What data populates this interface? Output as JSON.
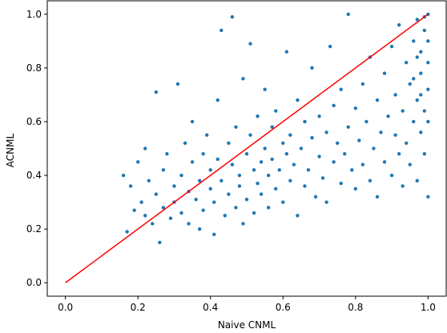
{
  "chart_data": {
    "type": "scatter",
    "xlabel": "Naive CNML",
    "ylabel": "ACNML",
    "xlim": [
      -0.05,
      1.05
    ],
    "ylim": [
      -0.05,
      1.05
    ],
    "xticks": [
      {
        "value": 0,
        "label": "0.0"
      },
      0.2,
      0.4,
      0.6,
      0.8,
      {
        "value": 1,
        "label": "1.0"
      }
    ],
    "yticks": [
      {
        "value": 0,
        "label": "0.0"
      },
      0.2,
      0.4,
      0.6,
      0.8,
      {
        "value": 1,
        "label": "1.0"
      }
    ],
    "grid": false,
    "color": "#1f77b4",
    "x": [
      0.16,
      0.17,
      0.18,
      0.19,
      0.2,
      0.21,
      0.22,
      0.22,
      0.23,
      0.24,
      0.25,
      0.25,
      0.26,
      0.27,
      0.27,
      0.28,
      0.29,
      0.3,
      0.3,
      0.31,
      0.32,
      0.32,
      0.33,
      0.34,
      0.34,
      0.35,
      0.35,
      0.36,
      0.37,
      0.37,
      0.38,
      0.38,
      0.39,
      0.4,
      0.4,
      0.41,
      0.41,
      0.42,
      0.42,
      0.43,
      0.43,
      0.44,
      0.45,
      0.45,
      0.46,
      0.46,
      0.47,
      0.47,
      0.48,
      0.48,
      0.49,
      0.49,
      0.5,
      0.5,
      0.51,
      0.51,
      0.52,
      0.52,
      0.53,
      0.53,
      0.54,
      0.54,
      0.55,
      0.55,
      0.56,
      0.56,
      0.57,
      0.57,
      0.58,
      0.58,
      0.59,
      0.6,
      0.6,
      0.61,
      0.61,
      0.62,
      0.62,
      0.63,
      0.64,
      0.64,
      0.65,
      0.66,
      0.66,
      0.67,
      0.68,
      0.68,
      0.69,
      0.7,
      0.7,
      0.71,
      0.72,
      0.72,
      0.73,
      0.74,
      0.74,
      0.75,
      0.76,
      0.76,
      0.77,
      0.78,
      0.78,
      0.79,
      0.8,
      0.8,
      0.81,
      0.82,
      0.82,
      0.83,
      0.84,
      0.84,
      0.85,
      0.86,
      0.86,
      0.87,
      0.88,
      0.88,
      0.89,
      0.9,
      0.9,
      0.91,
      0.91,
      0.92,
      0.92,
      0.93,
      0.93,
      0.94,
      0.94,
      0.95,
      0.95,
      0.96,
      0.96,
      0.97,
      0.97,
      0.97,
      0.98,
      0.98,
      0.98,
      0.99,
      0.99,
      0.99,
      1.0,
      1.0,
      1.0,
      1.0,
      1.0,
      1.0,
      0.99,
      0.98,
      0.97,
      0.96
    ],
    "y": [
      0.4,
      0.19,
      0.36,
      0.27,
      0.45,
      0.3,
      0.5,
      0.25,
      0.38,
      0.22,
      0.71,
      0.33,
      0.15,
      0.28,
      0.42,
      0.48,
      0.24,
      0.36,
      0.3,
      0.74,
      0.4,
      0.26,
      0.52,
      0.34,
      0.22,
      0.6,
      0.45,
      0.31,
      0.38,
      0.2,
      0.48,
      0.27,
      0.55,
      0.35,
      0.42,
      0.3,
      0.18,
      0.68,
      0.46,
      0.94,
      0.38,
      0.25,
      0.52,
      0.33,
      0.99,
      0.44,
      0.28,
      0.58,
      0.4,
      0.36,
      0.76,
      0.22,
      0.48,
      0.31,
      0.89,
      0.55,
      0.42,
      0.26,
      0.62,
      0.37,
      0.45,
      0.33,
      0.72,
      0.5,
      0.4,
      0.28,
      0.58,
      0.46,
      0.35,
      0.64,
      0.42,
      0.52,
      0.3,
      0.86,
      0.48,
      0.38,
      0.55,
      0.44,
      0.25,
      0.68,
      0.5,
      0.36,
      0.6,
      0.42,
      0.8,
      0.54,
      0.32,
      0.47,
      0.62,
      0.39,
      0.56,
      0.3,
      0.88,
      0.45,
      0.66,
      0.52,
      0.37,
      0.72,
      0.48,
      1.0,
      0.58,
      0.42,
      0.65,
      0.35,
      0.53,
      0.74,
      0.44,
      0.6,
      0.38,
      0.84,
      0.5,
      0.68,
      0.32,
      0.56,
      0.45,
      0.78,
      0.62,
      0.4,
      0.88,
      0.55,
      0.7,
      0.48,
      0.96,
      0.64,
      0.36,
      0.82,
      0.52,
      0.74,
      0.44,
      0.9,
      0.6,
      0.98,
      0.68,
      0.38,
      0.86,
      0.56,
      0.78,
      0.94,
      0.64,
      0.48,
      1.0,
      0.9,
      0.82,
      0.72,
      0.6,
      0.32,
      0.99,
      0.7,
      0.84,
      0.76
    ],
    "line": {
      "color": "#ff0000",
      "x": [
        0,
        1
      ],
      "y": [
        0,
        1
      ]
    }
  }
}
